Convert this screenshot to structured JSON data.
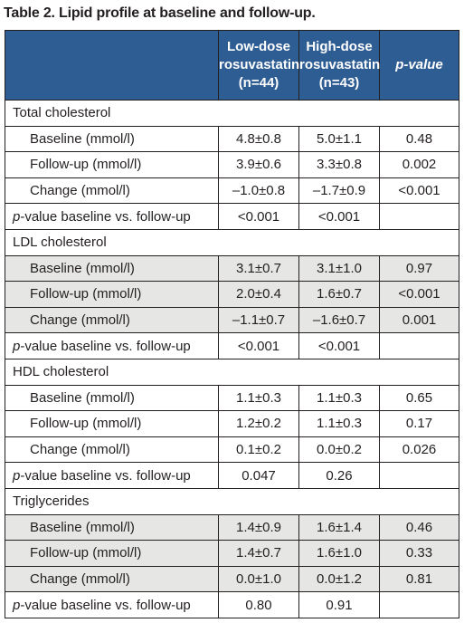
{
  "title": "Table 2. Lipid profile at baseline and follow-up.",
  "header": {
    "col1": [
      "Low-dose",
      "rosuvastatin",
      "(n=44)"
    ],
    "col2": [
      "High-dose",
      "rosuvastatin",
      "(n=43)"
    ],
    "col3": "p-value"
  },
  "sections": [
    {
      "name": "Total cholesterol",
      "rows": [
        {
          "label": "Baseline (mmol/l)",
          "low": "4.8±0.8",
          "high": "5.0±1.1",
          "p": "0.48"
        },
        {
          "label": "Follow-up (mmol/l)",
          "low": "3.9±0.6",
          "high": "3.3±0.8",
          "p": "0.002"
        },
        {
          "label": "Change (mmol/l)",
          "low": "–1.0±0.8",
          "high": "–1.7±0.9",
          "p": "<0.001"
        }
      ],
      "pvalue_row": {
        "label_italic": "p",
        "label_rest": "-value baseline vs. follow-up",
        "low": "<0.001",
        "high": "<0.001"
      }
    },
    {
      "name": "LDL cholesterol",
      "rows": [
        {
          "label": "Baseline (mmol/l)",
          "low": "3.1±0.7",
          "high": "3.1±1.0",
          "p": "0.97"
        },
        {
          "label": "Follow-up (mmol/l)",
          "low": "2.0±0.4",
          "high": "1.6±0.7",
          "p": "<0.001"
        },
        {
          "label": "Change (mmol/l)",
          "low": "–1.1±0.7",
          "high": "–1.6±0.7",
          "p": "0.001"
        }
      ],
      "pvalue_row": {
        "label_italic": "p",
        "label_rest": "-value baseline vs. follow-up",
        "low": "<0.001",
        "high": "<0.001"
      }
    },
    {
      "name": "HDL cholesterol",
      "rows": [
        {
          "label": "Baseline (mmol/l)",
          "low": "1.1±0.3",
          "high": "1.1±0.3",
          "p": "0.65"
        },
        {
          "label": "Follow-up (mmol/l)",
          "low": "1.2±0.2",
          "high": "1.1±0.3",
          "p": "0.17"
        },
        {
          "label": "Change (mmol/l)",
          "low": "0.1±0.2",
          "high": "0.0±0.2",
          "p": "0.026"
        }
      ],
      "pvalue_row": {
        "label_italic": "p",
        "label_rest": "-value baseline vs. follow-up",
        "low": "0.047",
        "high": "0.26"
      }
    },
    {
      "name": "Triglycerides",
      "rows": [
        {
          "label": "Baseline (mmol/l)",
          "low": "1.4±0.9",
          "high": "1.6±1.4",
          "p": "0.46"
        },
        {
          "label": "Follow-up (mmol/l)",
          "low": "1.4±0.7",
          "high": "1.6±1.0",
          "p": "0.33"
        },
        {
          "label": "Change (mmol/l)",
          "low": "0.0±1.0",
          "high": "0.0±1.2",
          "p": "0.81"
        }
      ],
      "pvalue_row": {
        "label_italic": "p",
        "label_rest": "-value baseline vs. follow-up",
        "low": "0.80",
        "high": "0.91"
      }
    }
  ],
  "colors": {
    "header_bg": "#2e5d93",
    "shade_bg": "#e6e6e4",
    "text": "#231f20"
  }
}
